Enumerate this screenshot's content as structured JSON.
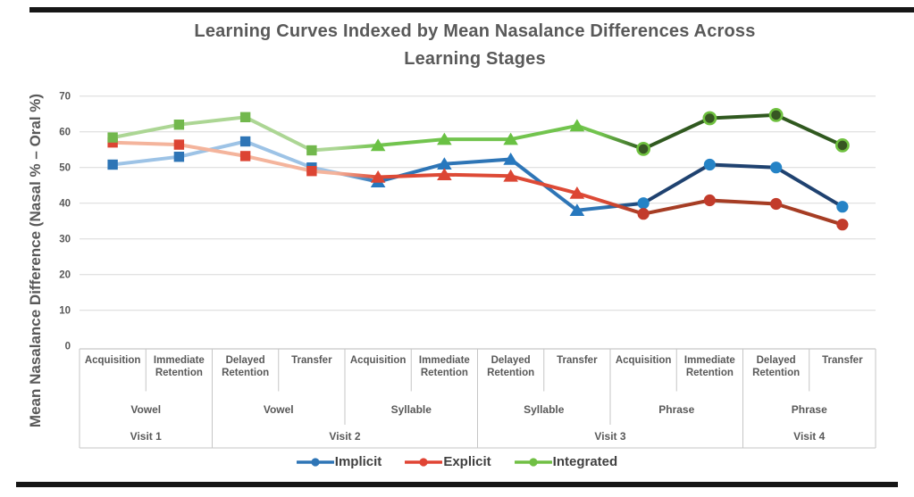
{
  "title": {
    "line1": "Learning Curves Indexed by Mean Nasalance Differences Across",
    "line2": "Learning Stages"
  },
  "colors": {
    "background": "#FFFFFF",
    "bar": "#161616",
    "title_text": "#595959",
    "axis_text": "#595959",
    "gridline": "#D8D8D8",
    "table_border": "#C6C6C6",
    "legend_text": "#404040"
  },
  "chart_data": {
    "type": "line",
    "title": "Learning Curves Indexed by Mean Nasalance Differences Across Learning Stages",
    "ylabel": "Mean Nasalance Difference (Nasal % – Oral %)",
    "ylim": [
      0,
      70
    ],
    "yticks": [
      70,
      60,
      50,
      40,
      30,
      20,
      10,
      0
    ],
    "grid": true,
    "legend_position": "bottom",
    "stages": [
      "Acquisition",
      "Immediate Retention",
      "Delayed Retention",
      "Transfer",
      "Acquisition",
      "Immediate Retention",
      "Delayed Retention",
      "Transfer",
      "Acquisition",
      "Immediate Retention",
      "Delayed Retention",
      "Transfer"
    ],
    "unit_groups": [
      {
        "label": "Vowel",
        "span": 2
      },
      {
        "label": "Vowel",
        "span": 2
      },
      {
        "label": "Syllable",
        "span": 2
      },
      {
        "label": "Syllable",
        "span": 2
      },
      {
        "label": "Phrase",
        "span": 2
      },
      {
        "label": "Phrase",
        "span": 2
      }
    ],
    "visit_groups": [
      {
        "label": "Visit 1",
        "span": 2
      },
      {
        "label": "Visit 2",
        "span": 4
      },
      {
        "label": "Visit 3",
        "span": 4
      },
      {
        "label": "Visit 4",
        "span": 2
      }
    ],
    "point_style_groups": [
      0,
      0,
      0,
      0,
      1,
      1,
      1,
      1,
      2,
      2,
      2,
      2
    ],
    "marker_shapes_by_group": [
      "square",
      "triangle",
      "circle"
    ],
    "series": [
      {
        "name": "Implicit",
        "legend_color": "#2E75B6",
        "values": [
          50.8,
          53,
          57.3,
          50,
          46,
          51,
          52.3,
          38,
          40,
          50.8,
          50,
          39
        ],
        "line_colors_by_group": [
          "#9DC3E6",
          "#2E75B6",
          "#1F4270"
        ],
        "marker_colors_by_group": [
          "#2E75B6",
          "#2778BE",
          "#2583C6"
        ],
        "marker_stroke_by_group": [
          null,
          null,
          null
        ]
      },
      {
        "name": "Explicit",
        "legend_color": "#E04434",
        "values": [
          57,
          56.4,
          53.2,
          49,
          47.3,
          48,
          47.6,
          42.8,
          37,
          40.8,
          39.8,
          34
        ],
        "line_colors_by_group": [
          "#F4B49C",
          "#DD4A36",
          "#A63D24"
        ],
        "marker_colors_by_group": [
          "#DC4433",
          "#DC4634",
          "#C23B2B"
        ],
        "marker_stroke_by_group": [
          null,
          null,
          null
        ]
      },
      {
        "name": "Integrated",
        "legend_color": "#70BF44",
        "values": [
          58.4,
          62,
          64.1,
          54.8,
          56.2,
          57.9,
          57.9,
          61.7,
          55.2,
          63.8,
          64.7,
          56.2
        ],
        "line_colors_by_group": [
          "#ACD694",
          "#72C44E",
          "#30591F"
        ],
        "marker_colors_by_group": [
          "#72B84D",
          "#69C143",
          "#375623"
        ],
        "marker_stroke_by_group": [
          null,
          null,
          "#6FC13F"
        ]
      }
    ]
  }
}
